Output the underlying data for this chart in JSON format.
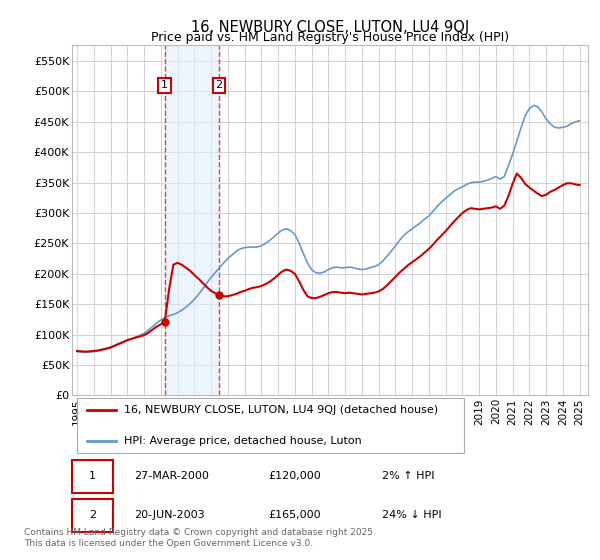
{
  "title": "16, NEWBURY CLOSE, LUTON, LU4 9QJ",
  "subtitle": "Price paid vs. HM Land Registry's House Price Index (HPI)",
  "title_fontsize": 10.5,
  "subtitle_fontsize": 9,
  "ylim": [
    0,
    577000
  ],
  "yticks": [
    0,
    50000,
    100000,
    150000,
    200000,
    250000,
    300000,
    350000,
    400000,
    450000,
    500000,
    550000
  ],
  "ytick_labels": [
    "£0",
    "£50K",
    "£100K",
    "£150K",
    "£200K",
    "£250K",
    "£300K",
    "£350K",
    "£400K",
    "£450K",
    "£500K",
    "£550K"
  ],
  "xlim_start": 1994.7,
  "xlim_end": 2025.5,
  "xtick_years": [
    1995,
    1996,
    1997,
    1998,
    1999,
    2000,
    2001,
    2002,
    2003,
    2004,
    2005,
    2006,
    2007,
    2008,
    2009,
    2010,
    2011,
    2012,
    2013,
    2014,
    2015,
    2016,
    2017,
    2018,
    2019,
    2020,
    2021,
    2022,
    2023,
    2024,
    2025
  ],
  "sale1_x": 2000.23,
  "sale1_y": 120000,
  "sale2_x": 2003.47,
  "sale2_y": 165000,
  "sale1_label": "1",
  "sale2_label": "2",
  "sale1_date": "27-MAR-2000",
  "sale2_date": "20-JUN-2003",
  "sale1_price": "£120,000",
  "sale2_price": "£165,000",
  "sale1_hpi": "2% ↑ HPI",
  "sale2_hpi": "24% ↓ HPI",
  "shade_color": "#ddeeff",
  "shade_alpha": 0.55,
  "vline_color": "#dd4444",
  "vline_style": "--",
  "red_line_color": "#cc0000",
  "blue_line_color": "#6699cc",
  "grid_color": "#cccccc",
  "background_color": "#ffffff",
  "legend_line1": "16, NEWBURY CLOSE, LUTON, LU4 9QJ (detached house)",
  "legend_line2": "HPI: Average price, detached house, Luton",
  "footer": "Contains HM Land Registry data © Crown copyright and database right 2025.\nThis data is licensed under the Open Government Licence v3.0.",
  "hpi_data_x": [
    1995.0,
    1995.25,
    1995.5,
    1995.75,
    1996.0,
    1996.25,
    1996.5,
    1996.75,
    1997.0,
    1997.25,
    1997.5,
    1997.75,
    1998.0,
    1998.25,
    1998.5,
    1998.75,
    1999.0,
    1999.25,
    1999.5,
    1999.75,
    2000.0,
    2000.25,
    2000.5,
    2000.75,
    2001.0,
    2001.25,
    2001.5,
    2001.75,
    2002.0,
    2002.25,
    2002.5,
    2002.75,
    2003.0,
    2003.25,
    2003.5,
    2003.75,
    2004.0,
    2004.25,
    2004.5,
    2004.75,
    2005.0,
    2005.25,
    2005.5,
    2005.75,
    2006.0,
    2006.25,
    2006.5,
    2006.75,
    2007.0,
    2007.25,
    2007.5,
    2007.75,
    2008.0,
    2008.25,
    2008.5,
    2008.75,
    2009.0,
    2009.25,
    2009.5,
    2009.75,
    2010.0,
    2010.25,
    2010.5,
    2010.75,
    2011.0,
    2011.25,
    2011.5,
    2011.75,
    2012.0,
    2012.25,
    2012.5,
    2012.75,
    2013.0,
    2013.25,
    2013.5,
    2013.75,
    2014.0,
    2014.25,
    2014.5,
    2014.75,
    2015.0,
    2015.25,
    2015.5,
    2015.75,
    2016.0,
    2016.25,
    2016.5,
    2016.75,
    2017.0,
    2017.25,
    2017.5,
    2017.75,
    2018.0,
    2018.25,
    2018.5,
    2018.75,
    2019.0,
    2019.25,
    2019.5,
    2019.75,
    2020.0,
    2020.25,
    2020.5,
    2020.75,
    2021.0,
    2021.25,
    2021.5,
    2021.75,
    2022.0,
    2022.25,
    2022.5,
    2022.75,
    2023.0,
    2023.25,
    2023.5,
    2023.75,
    2024.0,
    2024.25,
    2024.5,
    2024.75,
    2025.0
  ],
  "hpi_data_y": [
    72000,
    71500,
    71000,
    71500,
    72000,
    73000,
    74500,
    76000,
    78000,
    81000,
    84000,
    87000,
    90000,
    93000,
    96000,
    99000,
    102000,
    107000,
    113000,
    119000,
    124000,
    128000,
    131000,
    133000,
    136000,
    140000,
    145000,
    151000,
    158000,
    166000,
    175000,
    185000,
    194000,
    202000,
    210000,
    218000,
    225000,
    231000,
    237000,
    241000,
    243000,
    244000,
    244000,
    244000,
    246000,
    250000,
    255000,
    261000,
    267000,
    272000,
    274000,
    271000,
    265000,
    251000,
    234000,
    218000,
    207000,
    202000,
    201000,
    203000,
    207000,
    210000,
    211000,
    210000,
    210000,
    211000,
    210000,
    208000,
    207000,
    208000,
    210000,
    212000,
    215000,
    221000,
    229000,
    237000,
    246000,
    255000,
    263000,
    269000,
    274000,
    279000,
    284000,
    290000,
    295000,
    303000,
    311000,
    318000,
    324000,
    330000,
    336000,
    340000,
    343000,
    347000,
    350000,
    351000,
    351000,
    352000,
    354000,
    357000,
    360000,
    356000,
    360000,
    378000,
    397000,
    418000,
    440000,
    460000,
    472000,
    477000,
    475000,
    466000,
    455000,
    447000,
    441000,
    440000,
    441000,
    443000,
    447000,
    450000,
    452000
  ],
  "red_data_x": [
    1995.0,
    1995.25,
    1995.5,
    1995.75,
    1996.0,
    1996.25,
    1996.5,
    1996.75,
    1997.0,
    1997.25,
    1997.5,
    1997.75,
    1998.0,
    1998.25,
    1998.5,
    1998.75,
    1999.0,
    1999.25,
    1999.5,
    1999.75,
    2000.0,
    2000.23,
    2000.5,
    2000.75,
    2001.0,
    2001.25,
    2001.5,
    2001.75,
    2002.0,
    2002.25,
    2002.5,
    2002.75,
    2003.0,
    2003.25,
    2003.47,
    2003.75,
    2004.0,
    2004.25,
    2004.5,
    2004.75,
    2005.0,
    2005.25,
    2005.5,
    2005.75,
    2006.0,
    2006.25,
    2006.5,
    2006.75,
    2007.0,
    2007.25,
    2007.5,
    2007.75,
    2008.0,
    2008.25,
    2008.5,
    2008.75,
    2009.0,
    2009.25,
    2009.5,
    2009.75,
    2010.0,
    2010.25,
    2010.5,
    2010.75,
    2011.0,
    2011.25,
    2011.5,
    2011.75,
    2012.0,
    2012.25,
    2012.5,
    2012.75,
    2013.0,
    2013.25,
    2013.5,
    2013.75,
    2014.0,
    2014.25,
    2014.5,
    2014.75,
    2015.0,
    2015.25,
    2015.5,
    2015.75,
    2016.0,
    2016.25,
    2016.5,
    2016.75,
    2017.0,
    2017.25,
    2017.5,
    2017.75,
    2018.0,
    2018.25,
    2018.5,
    2018.75,
    2019.0,
    2019.25,
    2019.5,
    2019.75,
    2020.0,
    2020.25,
    2020.5,
    2020.75,
    2021.0,
    2021.25,
    2021.5,
    2021.75,
    2022.0,
    2022.25,
    2022.5,
    2022.75,
    2023.0,
    2023.25,
    2023.5,
    2023.75,
    2024.0,
    2024.25,
    2024.5,
    2024.75,
    2025.0
  ],
  "red_data_y": [
    73000,
    72500,
    72000,
    72500,
    73000,
    74000,
    75500,
    77000,
    79000,
    82000,
    85000,
    88000,
    91000,
    93000,
    95000,
    97000,
    99000,
    103000,
    108000,
    113000,
    117000,
    120000,
    175000,
    215000,
    218000,
    215000,
    210000,
    205000,
    198000,
    192000,
    185000,
    178000,
    172000,
    168000,
    165000,
    163000,
    163000,
    165000,
    167000,
    170000,
    172000,
    175000,
    177000,
    178000,
    180000,
    183000,
    187000,
    192000,
    198000,
    204000,
    207000,
    205000,
    200000,
    188000,
    174000,
    163000,
    160000,
    160000,
    162000,
    165000,
    168000,
    170000,
    170000,
    169000,
    168000,
    169000,
    168000,
    167000,
    166000,
    167000,
    168000,
    169000,
    171000,
    175000,
    181000,
    188000,
    195000,
    202000,
    208000,
    214000,
    219000,
    224000,
    229000,
    235000,
    241000,
    248000,
    256000,
    263000,
    270000,
    278000,
    286000,
    293000,
    300000,
    305000,
    308000,
    307000,
    306000,
    307000,
    308000,
    309000,
    311000,
    307000,
    312000,
    328000,
    348000,
    365000,
    358000,
    348000,
    342000,
    337000,
    332000,
    328000,
    330000,
    335000,
    338000,
    342000,
    346000,
    349000,
    349000,
    347000,
    346000
  ]
}
